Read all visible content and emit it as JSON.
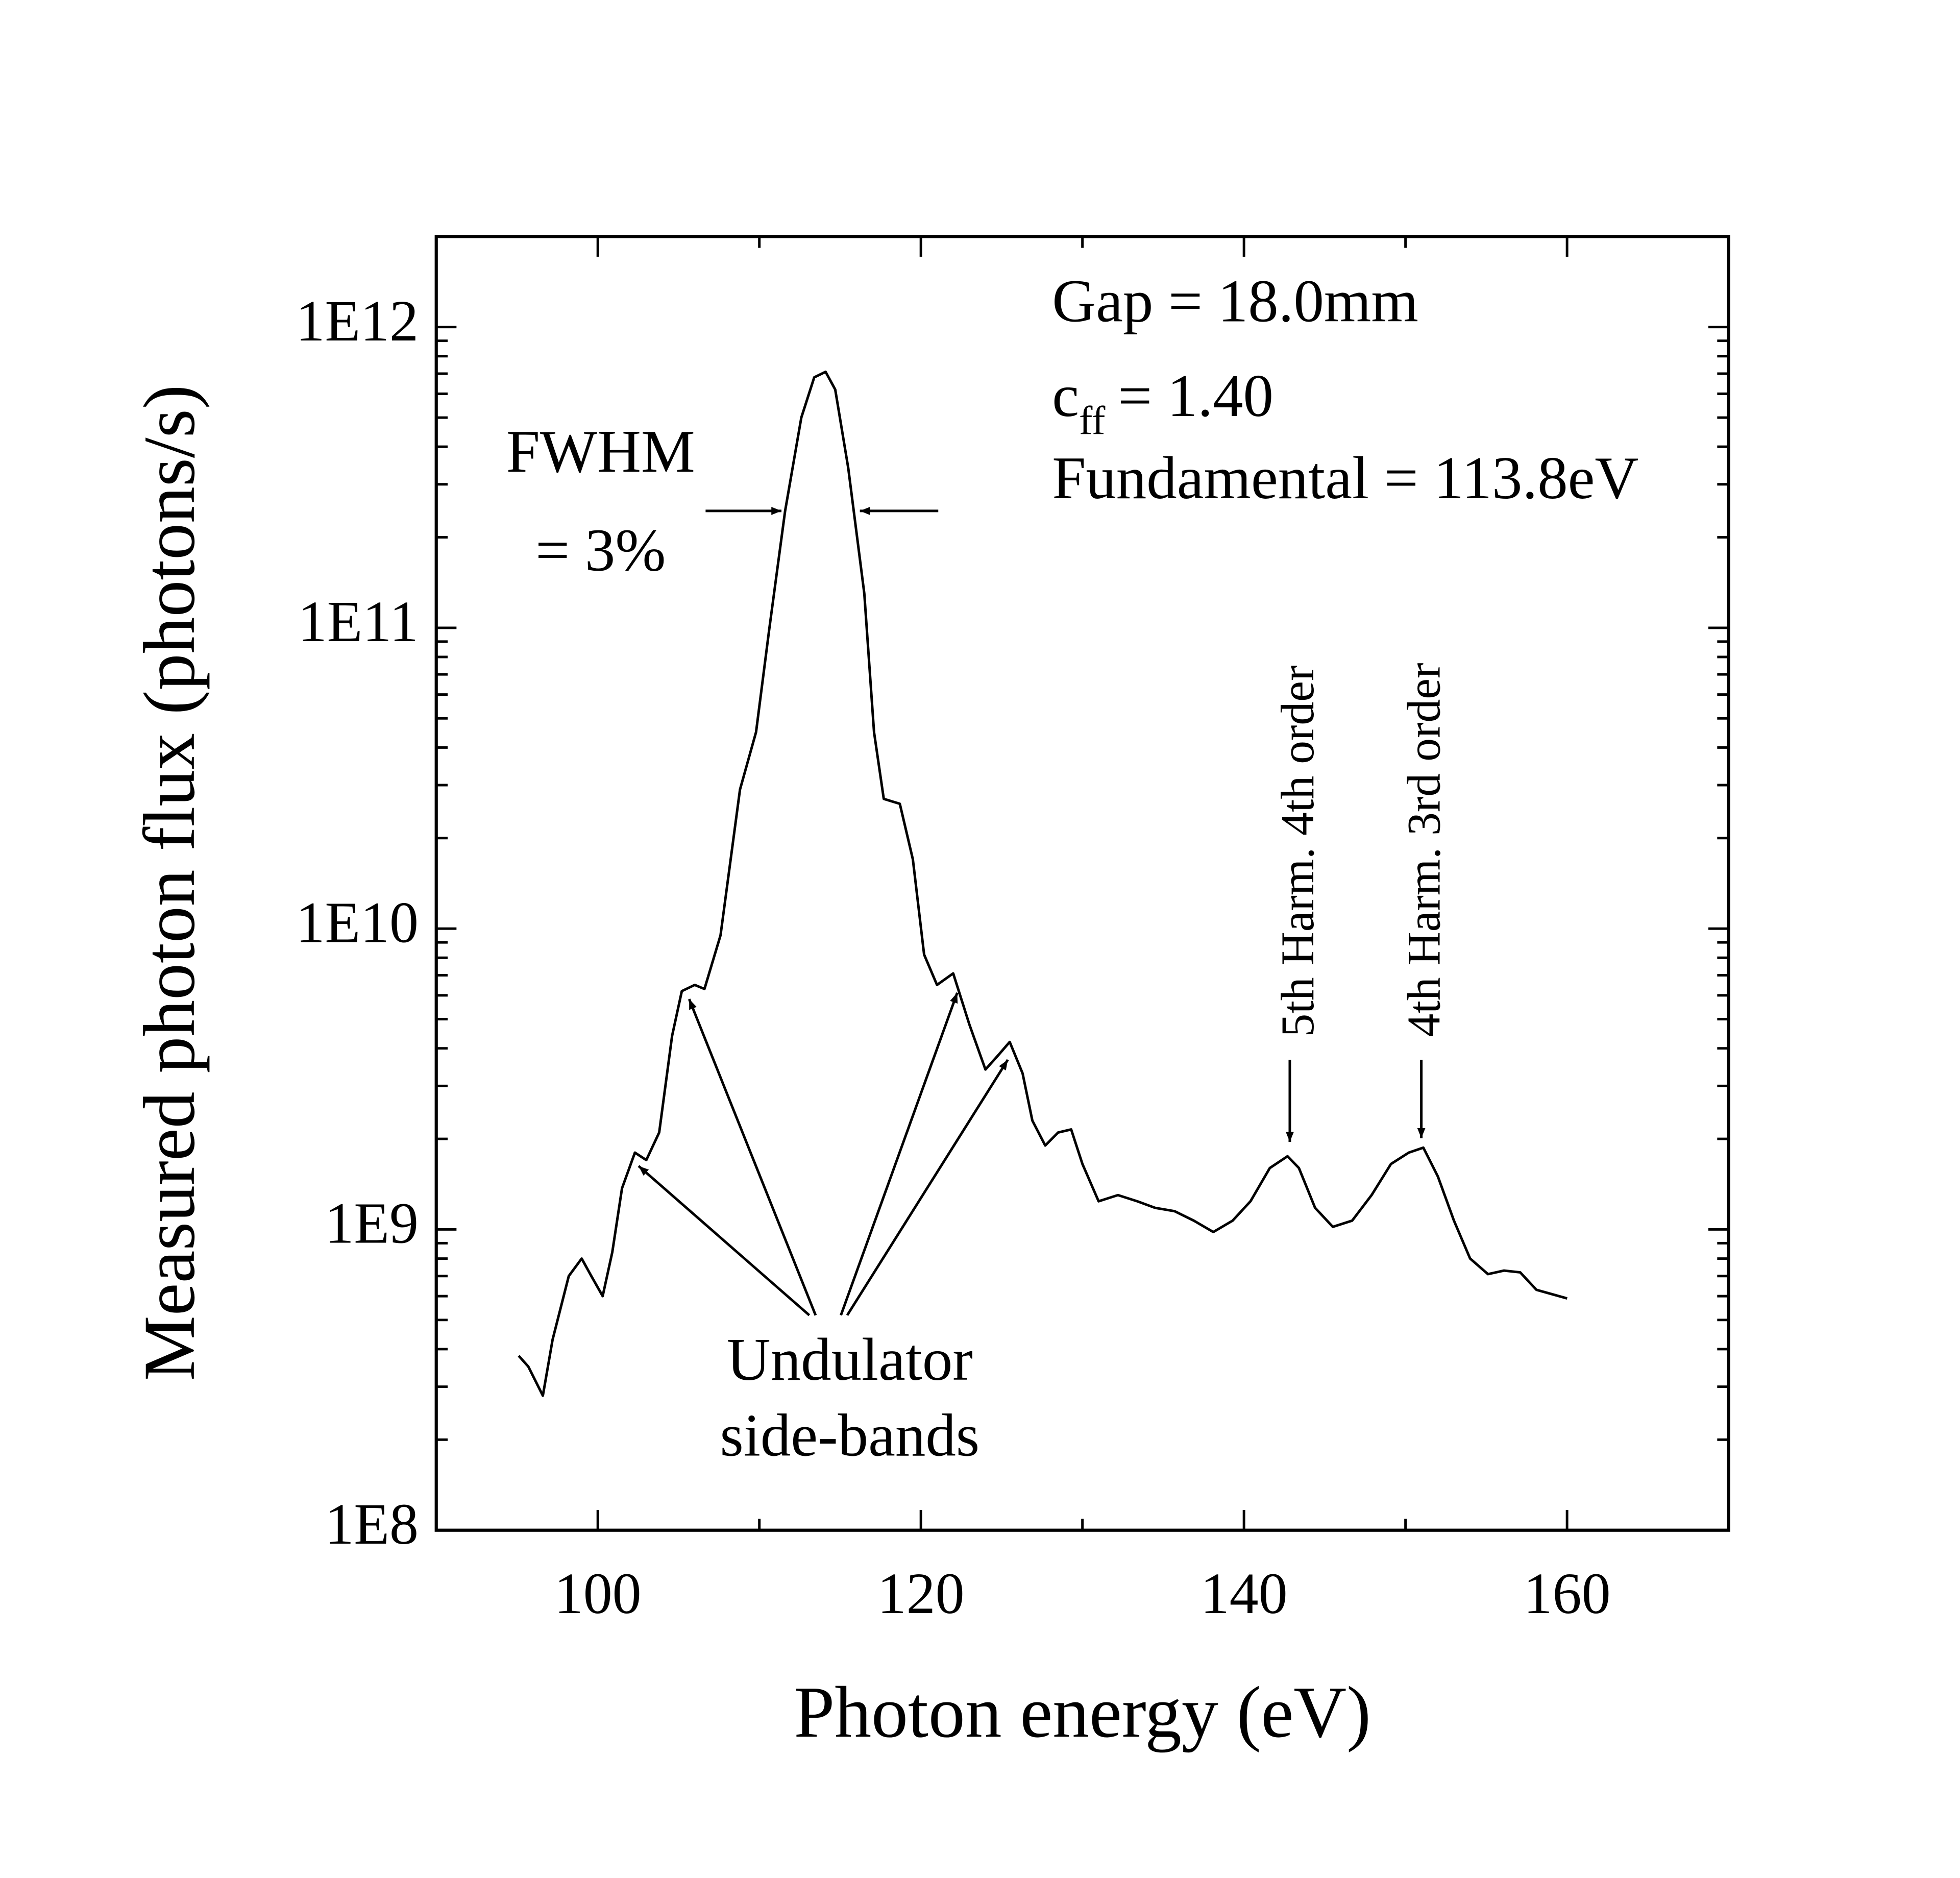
{
  "chart_data": {
    "type": "line",
    "x_label": "Photon energy (eV)",
    "y_label": "Measured photon flux (photons/s)",
    "log_y": true,
    "color": "#000000",
    "x": [
      95.1,
      95.7,
      96.6,
      97.2,
      98.2,
      99.0,
      99.6,
      100.3,
      100.9,
      101.5,
      102.3,
      103.0,
      103.8,
      104.6,
      105.2,
      106.0,
      106.6,
      107.6,
      108.8,
      109.8,
      110.6,
      111.6,
      112.6,
      113.4,
      114.1,
      114.7,
      115.5,
      116.5,
      117.1,
      117.7,
      118.7,
      119.5,
      120.2,
      121.0,
      122.0,
      123.0,
      124.0,
      124.8,
      125.5,
      126.3,
      126.9,
      127.7,
      128.5,
      129.3,
      130.0,
      131.0,
      132.2,
      133.4,
      134.5,
      135.7,
      136.9,
      138.1,
      139.3,
      140.4,
      141.6,
      142.7,
      143.4,
      144.4,
      145.5,
      146.7,
      147.9,
      149.1,
      150.2,
      151.1,
      152.0,
      153.0,
      154.0,
      155.1,
      156.1,
      157.1,
      158.1,
      160.0
    ],
    "values": [
      380000000.0,
      350000000.0,
      280000000.0,
      430000000.0,
      700000000.0,
      800000000.0,
      700000000.0,
      600000000.0,
      840000000.0,
      1370000000.0,
      1800000000.0,
      1700000000.0,
      2100000000.0,
      4400000000.0,
      6200000000.0,
      6500000000.0,
      6300000000.0,
      9500000000.0,
      29000000000.0,
      45000000000.0,
      98000000000.0,
      245000000000.0,
      500000000000.0,
      680000000000.0,
      710000000000.0,
      620000000000.0,
      340000000000.0,
      130000000000.0,
      45000000000.0,
      27000000000.0,
      26000000000.0,
      17000000000.0,
      8200000000.0,
      6500000000.0,
      7100000000.0,
      4800000000.0,
      3400000000.0,
      3800000000.0,
      4200000000.0,
      3300000000.0,
      2300000000.0,
      1900000000.0,
      2100000000.0,
      2150000000.0,
      1650000000.0,
      1240000000.0,
      1300000000.0,
      1240000000.0,
      1180000000.0,
      1150000000.0,
      1070000000.0,
      980000000.0,
      1070000000.0,
      1240000000.0,
      1600000000.0,
      1750000000.0,
      1600000000.0,
      1180000000.0,
      1020000000.0,
      1070000000.0,
      1300000000.0,
      1650000000.0,
      1800000000.0,
      1870000000.0,
      1500000000.0,
      1070000000.0,
      800000000.0,
      710000000.0,
      730000000.0,
      720000000.0,
      630000000.0,
      590000000.0
    ],
    "xlim": [
      90,
      170
    ],
    "xticks": [
      100,
      120,
      140,
      160
    ],
    "ylim": [
      100000000.0,
      2000000000000.0
    ],
    "yticks": [
      {
        "value": 100000000.0,
        "label": "1E8"
      },
      {
        "value": 1000000000.0,
        "label": "1E9"
      },
      {
        "value": 10000000000.0,
        "label": "1E10"
      },
      {
        "value": 100000000000.0,
        "label": "1E11"
      },
      {
        "value": 1000000000000.0,
        "label": "1E12"
      }
    ],
    "annotations": {
      "gap": "Gap = 18.0mm",
      "cff": {
        "base": "c",
        "sub": "ff",
        "rest": "= 1.40"
      },
      "fundamental": "Fundamental = 113.8eV",
      "fwhm": "FWHM",
      "fwhm_value": "= 3%",
      "sidebands_1": "Undulator",
      "sidebands_2": "side-bands",
      "harm5": "5th Harm. 4th order",
      "harm4": "4th Harm. 3rd order"
    }
  }
}
